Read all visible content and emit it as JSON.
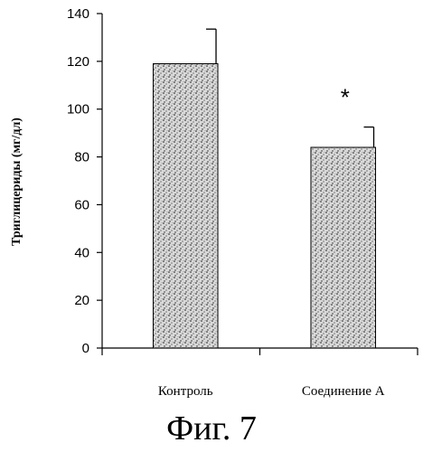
{
  "figure": {
    "caption": "Фиг. 7"
  },
  "chart_data": {
    "type": "bar",
    "categories": [
      "Контроль",
      "Соединение А"
    ],
    "values": [
      119,
      84
    ],
    "error_bars": [
      14.5,
      8.5
    ],
    "annotations": [
      {
        "category": "Соединение А",
        "text": "*"
      }
    ],
    "title": "",
    "xlabel": "",
    "ylabel": "Триглицериды (мг/дл)",
    "ylim": [
      0,
      140
    ],
    "yticks": [
      0,
      20,
      40,
      60,
      80,
      100,
      120,
      140
    ],
    "grid": false,
    "legend": "none",
    "bar_fill": "stippled gray",
    "colors": {
      "bar_fill": "#d9d9d9",
      "stipple": "#1a1a1a",
      "axis": "#000000"
    }
  }
}
